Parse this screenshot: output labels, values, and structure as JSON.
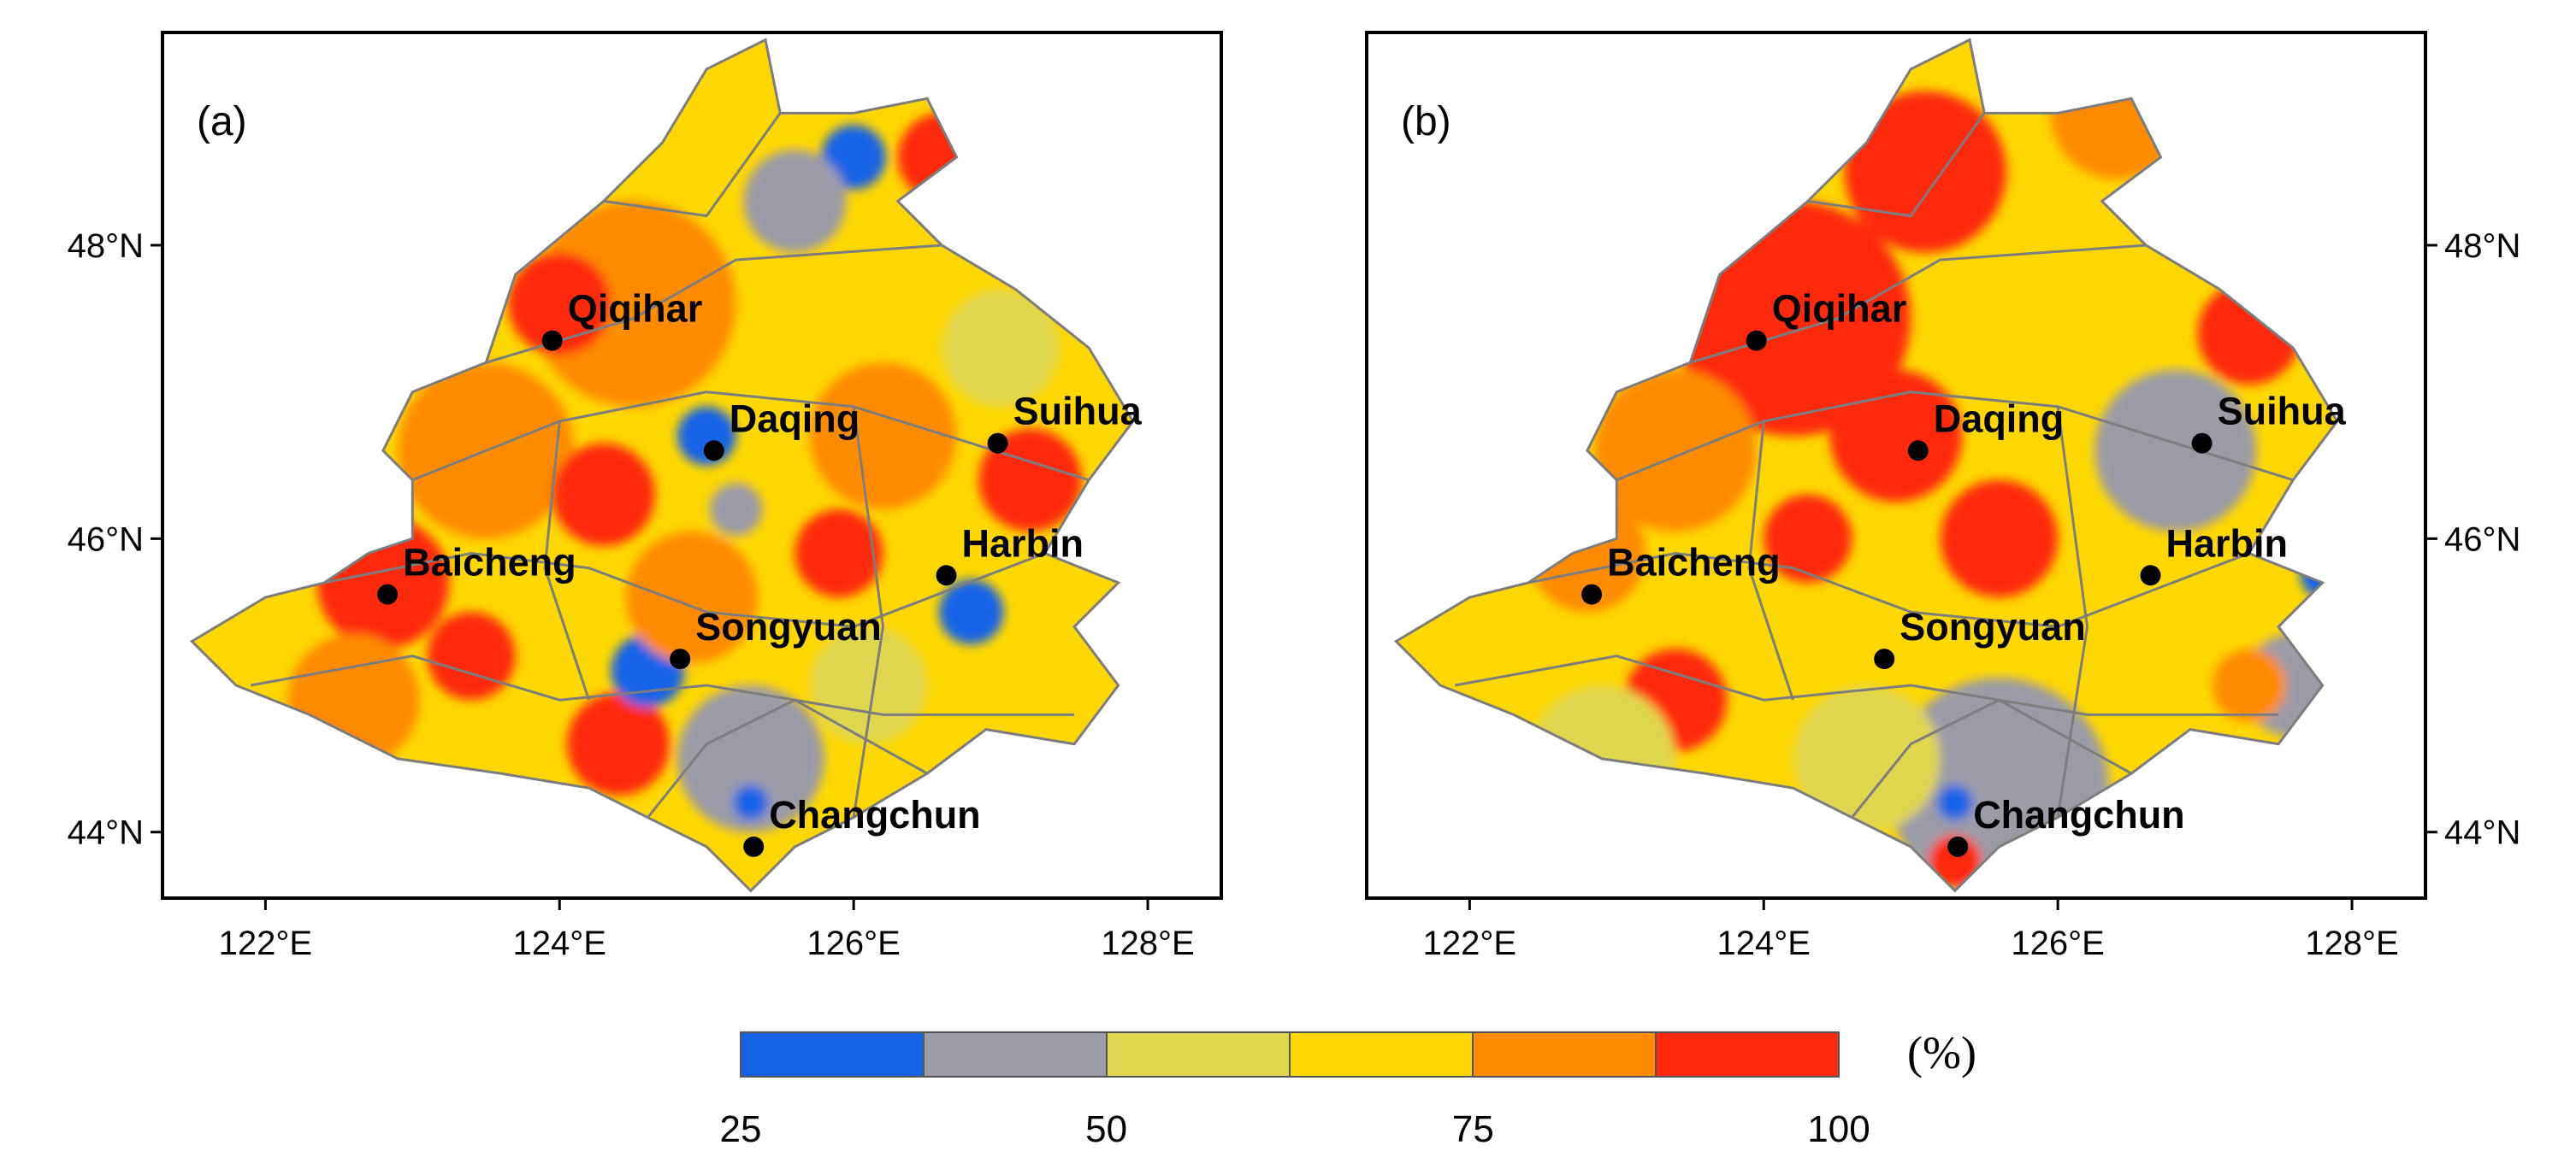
{
  "panels": [
    {
      "id": "a",
      "label": "(a)",
      "lon_range": [
        121.3,
        128.5
      ],
      "lat_range": [
        43.55,
        49.45
      ],
      "colors": [
        "#ff2a0d",
        "#ff8c00",
        "#ffd700",
        "#dfd650",
        "#9b9ba8",
        "#1763e6"
      ],
      "blobs": [
        {
          "lon": 122.8,
          "lat": 45.7,
          "r": 0.45,
          "level": "#ff2a0d"
        },
        {
          "lon": 123.5,
          "lat": 46.6,
          "r": 0.6,
          "level": "#ff8c00"
        },
        {
          "lon": 124.5,
          "lat": 47.6,
          "r": 0.7,
          "level": "#ff8c00"
        },
        {
          "lon": 124.0,
          "lat": 47.6,
          "r": 0.35,
          "level": "#ff2a0d"
        },
        {
          "lon": 124.4,
          "lat": 44.6,
          "r": 0.35,
          "level": "#ff2a0d"
        },
        {
          "lon": 123.4,
          "lat": 45.2,
          "r": 0.3,
          "level": "#ff2a0d"
        },
        {
          "lon": 122.6,
          "lat": 44.9,
          "r": 0.45,
          "level": "#ff8c00"
        },
        {
          "lon": 126.0,
          "lat": 48.6,
          "r": 0.22,
          "level": "#1763e6"
        },
        {
          "lon": 125.6,
          "lat": 48.3,
          "r": 0.35,
          "level": "#9b9ba8"
        },
        {
          "lon": 124.6,
          "lat": 45.1,
          "r": 0.25,
          "level": "#1763e6"
        },
        {
          "lon": 126.8,
          "lat": 45.5,
          "r": 0.22,
          "level": "#1763e6"
        },
        {
          "lon": 125.3,
          "lat": 44.5,
          "r": 0.5,
          "level": "#9b9ba8"
        },
        {
          "lon": 125.3,
          "lat": 44.2,
          "r": 0.12,
          "level": "#1763e6"
        },
        {
          "lon": 125.0,
          "lat": 46.7,
          "r": 0.2,
          "level": "#1763e6"
        },
        {
          "lon": 126.2,
          "lat": 46.7,
          "r": 0.5,
          "level": "#ff8c00"
        },
        {
          "lon": 127.2,
          "lat": 46.4,
          "r": 0.35,
          "level": "#ff2a0d"
        },
        {
          "lon": 126.6,
          "lat": 48.6,
          "r": 0.3,
          "level": "#ff2a0d"
        },
        {
          "lon": 125.9,
          "lat": 45.9,
          "r": 0.3,
          "level": "#ff2a0d"
        },
        {
          "lon": 124.3,
          "lat": 46.3,
          "r": 0.35,
          "level": "#ff2a0d"
        },
        {
          "lon": 124.9,
          "lat": 45.6,
          "r": 0.45,
          "level": "#ff8c00"
        },
        {
          "lon": 126.1,
          "lat": 45.0,
          "r": 0.4,
          "level": "#dfd650"
        },
        {
          "lon": 127.0,
          "lat": 47.3,
          "r": 0.4,
          "level": "#dfd650"
        },
        {
          "lon": 125.2,
          "lat": 46.2,
          "r": 0.18,
          "level": "#9b9ba8"
        }
      ],
      "cities": [
        {
          "name": "Qiqihar",
          "lon": 123.95,
          "lat": 47.35
        },
        {
          "name": "Daqing",
          "lon": 125.05,
          "lat": 46.6
        },
        {
          "name": "Suihua",
          "lon": 126.98,
          "lat": 46.65
        },
        {
          "name": "Harbin",
          "lon": 126.63,
          "lat": 45.75
        },
        {
          "name": "Baicheng",
          "lon": 122.83,
          "lat": 45.62
        },
        {
          "name": "Songyuan",
          "lon": 124.82,
          "lat": 45.18
        },
        {
          "name": "Changchun",
          "lon": 125.32,
          "lat": 43.9
        }
      ],
      "x_ticks": [
        {
          "value": 122,
          "label": "122°E"
        },
        {
          "value": 124,
          "label": "124°E"
        },
        {
          "value": 126,
          "label": "126°E"
        },
        {
          "value": 128,
          "label": "128°E"
        }
      ],
      "y_ticks": [
        {
          "value": 44,
          "label": "44°N"
        },
        {
          "value": 46,
          "label": "46°N"
        },
        {
          "value": 48,
          "label": "48°N"
        }
      ],
      "y_axis_side": "left"
    },
    {
      "id": "b",
      "label": "(b)",
      "lon_range": [
        121.3,
        128.5
      ],
      "lat_range": [
        43.55,
        49.45
      ],
      "colors": [
        "#ff2a0d",
        "#ff8c00",
        "#ffd700",
        "#dfd650",
        "#9b9ba8",
        "#1763e6"
      ],
      "blobs": [
        {
          "lon": 124.2,
          "lat": 47.5,
          "r": 0.8,
          "level": "#ff2a0d"
        },
        {
          "lon": 125.1,
          "lat": 48.5,
          "r": 0.55,
          "level": "#ff2a0d"
        },
        {
          "lon": 124.9,
          "lat": 46.7,
          "r": 0.45,
          "level": "#ff2a0d"
        },
        {
          "lon": 123.4,
          "lat": 46.6,
          "r": 0.55,
          "level": "#ff8c00"
        },
        {
          "lon": 122.8,
          "lat": 45.9,
          "r": 0.4,
          "level": "#ff8c00"
        },
        {
          "lon": 123.4,
          "lat": 44.9,
          "r": 0.35,
          "level": "#ff2a0d"
        },
        {
          "lon": 126.4,
          "lat": 48.9,
          "r": 0.45,
          "level": "#ff8c00"
        },
        {
          "lon": 127.3,
          "lat": 47.4,
          "r": 0.35,
          "level": "#ff2a0d"
        },
        {
          "lon": 125.6,
          "lat": 46.0,
          "r": 0.4,
          "level": "#ff2a0d"
        },
        {
          "lon": 124.3,
          "lat": 46.0,
          "r": 0.3,
          "level": "#ff2a0d"
        },
        {
          "lon": 126.8,
          "lat": 46.6,
          "r": 0.35,
          "level": "#1763e6"
        },
        {
          "lon": 126.8,
          "lat": 46.6,
          "r": 0.55,
          "level": "#9b9ba8"
        },
        {
          "lon": 125.6,
          "lat": 44.3,
          "r": 0.75,
          "level": "#9b9ba8"
        },
        {
          "lon": 125.3,
          "lat": 44.2,
          "r": 0.12,
          "level": "#1763e6"
        },
        {
          "lon": 125.3,
          "lat": 43.8,
          "r": 0.18,
          "level": "#ff2a0d"
        },
        {
          "lon": 124.7,
          "lat": 44.5,
          "r": 0.5,
          "level": "#dfd650"
        },
        {
          "lon": 122.9,
          "lat": 44.5,
          "r": 0.5,
          "level": "#dfd650"
        },
        {
          "lon": 127.6,
          "lat": 45.0,
          "r": 0.35,
          "level": "#9b9ba8"
        },
        {
          "lon": 127.3,
          "lat": 45.0,
          "r": 0.25,
          "level": "#ff8c00"
        },
        {
          "lon": 127.8,
          "lat": 45.75,
          "r": 0.15,
          "level": "#1763e6"
        }
      ],
      "cities": [
        {
          "name": "Qiqihar",
          "lon": 123.95,
          "lat": 47.35
        },
        {
          "name": "Daqing",
          "lon": 125.05,
          "lat": 46.6
        },
        {
          "name": "Suihua",
          "lon": 126.98,
          "lat": 46.65
        },
        {
          "name": "Harbin",
          "lon": 126.63,
          "lat": 45.75
        },
        {
          "name": "Baicheng",
          "lon": 122.83,
          "lat": 45.62
        },
        {
          "name": "Songyuan",
          "lon": 124.82,
          "lat": 45.18
        },
        {
          "name": "Changchun",
          "lon": 125.32,
          "lat": 43.9
        }
      ],
      "x_ticks": [
        {
          "value": 122,
          "label": "122°E"
        },
        {
          "value": 124,
          "label": "124°E"
        },
        {
          "value": 126,
          "label": "126°E"
        },
        {
          "value": 128,
          "label": "128°E"
        }
      ],
      "y_ticks": [
        {
          "value": 44,
          "label": "44°N"
        },
        {
          "value": 46,
          "label": "46°N"
        },
        {
          "value": 48,
          "label": "48°N"
        }
      ],
      "y_axis_side": "right"
    }
  ],
  "region_outline": [
    [
      121.5,
      45.3
    ],
    [
      122.0,
      45.6
    ],
    [
      122.4,
      45.7
    ],
    [
      122.7,
      45.9
    ],
    [
      123.0,
      46.0
    ],
    [
      123.0,
      46.4
    ],
    [
      122.8,
      46.6
    ],
    [
      123.0,
      47.0
    ],
    [
      123.5,
      47.2
    ],
    [
      123.7,
      47.8
    ],
    [
      124.3,
      48.3
    ],
    [
      124.7,
      48.7
    ],
    [
      125.0,
      49.2
    ],
    [
      125.4,
      49.4
    ],
    [
      125.5,
      48.9
    ],
    [
      126.0,
      48.9
    ],
    [
      126.5,
      49.0
    ],
    [
      126.7,
      48.6
    ],
    [
      126.3,
      48.3
    ],
    [
      126.6,
      48.0
    ],
    [
      127.1,
      47.7
    ],
    [
      127.6,
      47.3
    ],
    [
      127.9,
      46.8
    ],
    [
      127.6,
      46.4
    ],
    [
      127.3,
      45.9
    ],
    [
      127.8,
      45.7
    ],
    [
      127.5,
      45.4
    ],
    [
      127.8,
      45.0
    ],
    [
      127.5,
      44.6
    ],
    [
      126.9,
      44.7
    ],
    [
      126.5,
      44.4
    ],
    [
      126.0,
      44.1
    ],
    [
      125.6,
      43.9
    ],
    [
      125.3,
      43.6
    ],
    [
      125.0,
      43.9
    ],
    [
      124.6,
      44.1
    ],
    [
      124.2,
      44.3
    ],
    [
      123.6,
      44.4
    ],
    [
      122.9,
      44.5
    ],
    [
      122.3,
      44.8
    ],
    [
      121.8,
      45.0
    ],
    [
      121.5,
      45.3
    ]
  ],
  "colorbar": {
    "colors": [
      "#1763e6",
      "#9b9ba8",
      "#dfd650",
      "#ffd700",
      "#ff8c00",
      "#ff2a0d"
    ],
    "tick_labels": [
      {
        "frac": 0.0,
        "label": "25"
      },
      {
        "frac": 0.333,
        "label": "50"
      },
      {
        "frac": 0.667,
        "label": "75"
      },
      {
        "frac": 1.0,
        "label": "100"
      }
    ],
    "unit": "(%)"
  }
}
